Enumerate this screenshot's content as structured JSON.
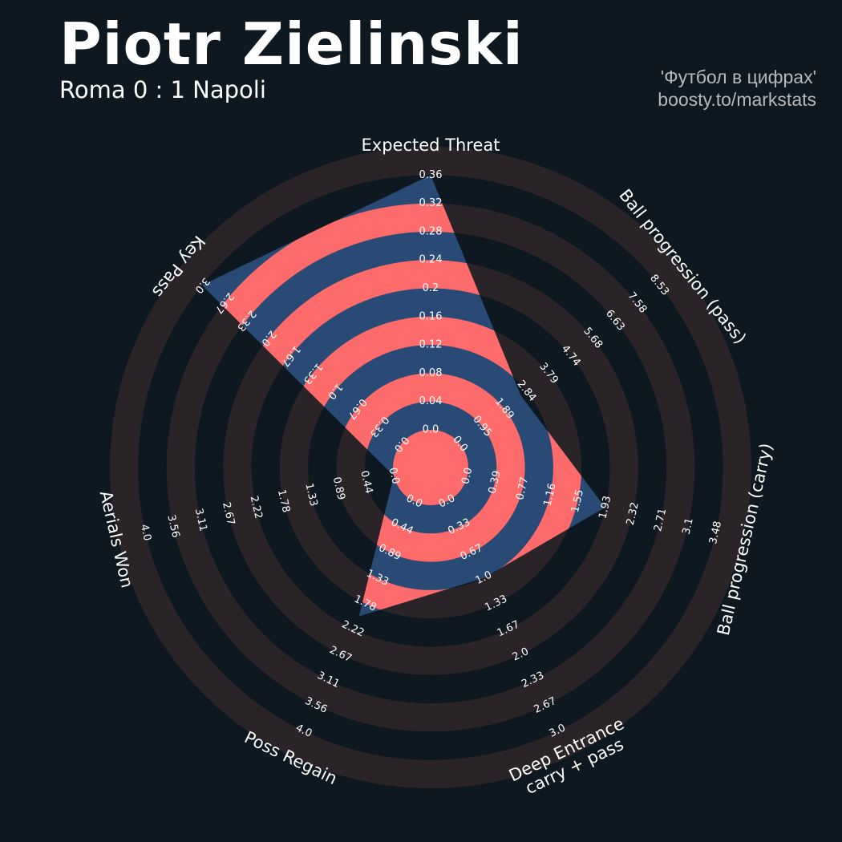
{
  "chart_data": {
    "type": "radar",
    "title": "Piotr Zielinski",
    "subtitle": "Roma 0 : 1 Napoli",
    "credit_lines": [
      "'Футбол в цифрах'",
      "boosty.to/markstats"
    ],
    "colors": {
      "background": "#0e1820",
      "ring_band": "#2a2429",
      "player_fill": "#284a75",
      "highlight": "#ff6b6b",
      "text": "#ffffff"
    },
    "axes": [
      {
        "name": "Expected Threat",
        "value": 0.36,
        "ticks": [
          "0.0",
          "0.04",
          "0.08",
          "0.12",
          "0.16",
          "0.2",
          "0.24",
          "0.28",
          "0.32",
          "0.36"
        ]
      },
      {
        "name": "Ball progression (pass)",
        "value": 2.6,
        "ticks": [
          "0.0",
          "0.95",
          "1.89",
          "2.84",
          "3.79",
          "4.74",
          "5.68",
          "6.63",
          "7.58",
          "8.53"
        ]
      },
      {
        "name": "Ball progression (carry)",
        "value": 1.93,
        "ticks": [
          "0.0",
          "0.39",
          "0.77",
          "1.16",
          "1.55",
          "1.93",
          "2.32",
          "2.71",
          "3.1",
          "3.48"
        ]
      },
      {
        "name": "Deep Entrance\ncarry + pass",
        "value": 1.0,
        "ticks": [
          "0.0",
          "0.33",
          "0.67",
          "1.0",
          "1.33",
          "1.67",
          "2.0",
          "2.33",
          "2.67",
          "3.0"
        ]
      },
      {
        "name": "Poss Regain",
        "value": 2.0,
        "ticks": [
          "0.0",
          "0.44",
          "0.89",
          "1.33",
          "1.78",
          "2.22",
          "2.67",
          "3.11",
          "3.56",
          "4.0"
        ]
      },
      {
        "name": "Aerials Won",
        "value": 0.0,
        "ticks": [
          "0.0",
          "0.44",
          "0.89",
          "1.33",
          "1.78",
          "2.22",
          "2.67",
          "3.11",
          "3.56",
          "4.0"
        ]
      },
      {
        "name": "Key Pass",
        "value": 3.0,
        "ticks": [
          "0.0",
          "0.33",
          "0.67",
          "1.0",
          "1.33",
          "1.67",
          "2.0",
          "2.33",
          "2.67",
          "3.0"
        ]
      }
    ]
  }
}
